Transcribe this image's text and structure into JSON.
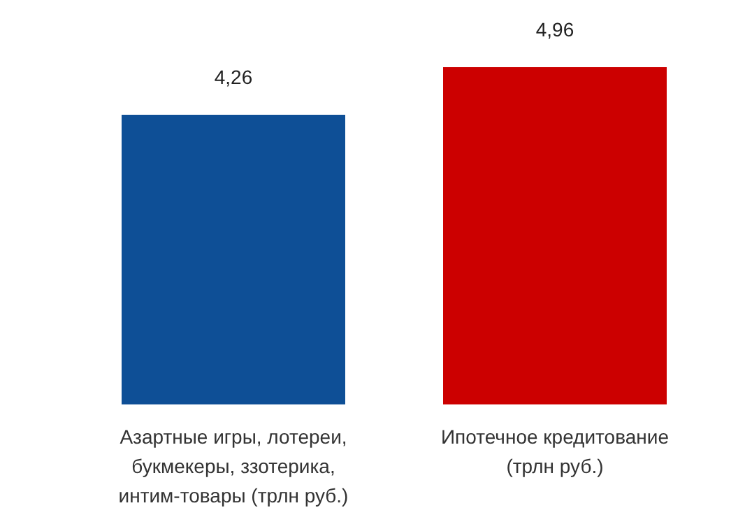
{
  "chart_data": {
    "type": "bar",
    "categories": [
      "Азартные игры, лотереи, букмекеры, ззотерика, интим-товары (трлн руб.)",
      "Ипотечное кредитование (трлн руб.)"
    ],
    "values": [
      4.26,
      4.96
    ],
    "colors": [
      "#0e4f96",
      "#cc0000"
    ],
    "value_labels": [
      "4,26",
      "4,96"
    ],
    "grid": false,
    "legend": false
  }
}
